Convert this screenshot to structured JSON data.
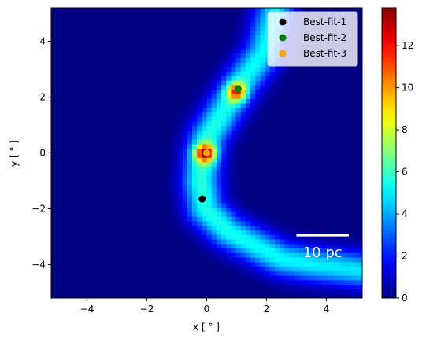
{
  "chart_data": {
    "type": "heatmap",
    "title": "",
    "xlabel": "x [$^\\circ$]",
    "ylabel": "y [$^\\circ$]",
    "xlabel_display": "x [ ° ]",
    "ylabel_display": "y [ ° ]",
    "xlim": [
      -5.2,
      5.2
    ],
    "ylim": [
      -5.2,
      5.2
    ],
    "xticks": [
      -4,
      -2,
      0,
      2,
      4
    ],
    "yticks": [
      -4,
      -2,
      0,
      2,
      4
    ],
    "grid": false,
    "colormap": "jet",
    "colorbar": {
      "range": [
        0,
        13.8
      ],
      "ticks": [
        0,
        2,
        4,
        6,
        8,
        10,
        12
      ]
    },
    "heatmap_structure": {
      "ridge_path": [
        {
          "x": 2.3,
          "y": 5.2
        },
        {
          "x": 1.9,
          "y": 3.6
        },
        {
          "x": 1.2,
          "y": 2.6
        },
        {
          "x": 0.5,
          "y": 1.4
        },
        {
          "x": 0.05,
          "y": 0.6
        },
        {
          "x": -0.1,
          "y": 0.0
        },
        {
          "x": -0.2,
          "y": -1.0
        },
        {
          "x": -0.05,
          "y": -2.0
        },
        {
          "x": 0.7,
          "y": -2.8
        },
        {
          "x": 1.6,
          "y": -3.3
        },
        {
          "x": 2.5,
          "y": -3.8
        },
        {
          "x": 3.6,
          "y": -4.0
        },
        {
          "x": 5.2,
          "y": -4.2
        }
      ],
      "peaks": [
        {
          "x": -0.05,
          "y": 0.0,
          "value": 13.8
        },
        {
          "x": 1.0,
          "y": 2.2,
          "value": 12.5
        }
      ]
    },
    "series": [
      {
        "name": "Best-fit-1",
        "color": "#000000",
        "points": [
          {
            "x": -0.15,
            "y": -1.65
          }
        ]
      },
      {
        "name": "Best-fit-2",
        "color": "#007f00",
        "points": [
          {
            "x": 1.05,
            "y": 2.3
          }
        ]
      },
      {
        "name": "Best-fit-3",
        "color": "#ffa500",
        "points": [
          {
            "x": 0.0,
            "y": 0.0
          }
        ]
      }
    ],
    "legend": {
      "position": "top-right",
      "entries": [
        "Best-fit-1",
        "Best-fit-2",
        "Best-fit-3"
      ]
    },
    "annotations": [
      {
        "type": "scale-bar",
        "label": "10 pc",
        "color": "#ffffff",
        "x_start": 3.0,
        "x_end": 4.75,
        "y": -2.95
      }
    ]
  }
}
